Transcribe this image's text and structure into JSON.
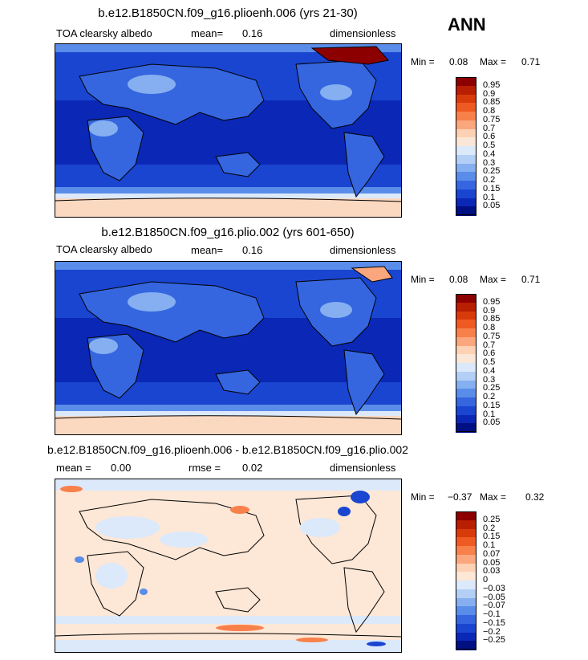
{
  "season": "ANN",
  "panels": [
    {
      "title": "b.e12.B1850CN.f09_g16.plioenh.006 (yrs 21-30)",
      "left_label": "TOA clearsky albedo",
      "mean_label": "mean=",
      "mean_value": "0.16",
      "units": "dimensionless",
      "min_label": "Min =",
      "min_value": "0.08",
      "max_label": "Max =",
      "max_value": "0.71",
      "levels": [
        "0.95",
        "0.9",
        "0.85",
        "0.8",
        "0.75",
        "0.7",
        "0.6",
        "0.5",
        "0.4",
        "0.3",
        "0.25",
        "0.2",
        "0.15",
        "0.1",
        "0.05"
      ],
      "colors": [
        "#8c0000",
        "#b81e00",
        "#d93a0a",
        "#ef5a22",
        "#f8804a",
        "#fba77d",
        "#fdd1b4",
        "#fbe7d8",
        "#dbe9fb",
        "#b4cff6",
        "#85aff0",
        "#5a8ce9",
        "#3566e0",
        "#1a45d0",
        "#0a28b5",
        "#000f82"
      ]
    },
    {
      "title": "b.e12.B1850CN.f09_g16.plio.002 (yrs 601-650)",
      "left_label": "TOA clearsky albedo",
      "mean_label": "mean=",
      "mean_value": "0.16",
      "units": "dimensionless",
      "min_label": "Min =",
      "min_value": "0.08",
      "max_label": "Max =",
      "max_value": "0.71",
      "levels": [
        "0.95",
        "0.9",
        "0.85",
        "0.8",
        "0.75",
        "0.7",
        "0.6",
        "0.5",
        "0.4",
        "0.3",
        "0.25",
        "0.2",
        "0.15",
        "0.1",
        "0.05"
      ],
      "colors": [
        "#8c0000",
        "#b81e00",
        "#d93a0a",
        "#ef5a22",
        "#f8804a",
        "#fba77d",
        "#fdd1b4",
        "#fbe7d8",
        "#dbe9fb",
        "#b4cff6",
        "#85aff0",
        "#5a8ce9",
        "#3566e0",
        "#1a45d0",
        "#0a28b5",
        "#000f82"
      ]
    },
    {
      "title": "b.e12.B1850CN.f09_g16.plioenh.006 - b.e12.B1850CN.f09_g16.plio.002",
      "mean_label": "mean =",
      "mean_value": "0.00",
      "rmse_label": "rmse =",
      "rmse_value": "0.02",
      "units": "dimensionless",
      "min_label": "Min =",
      "min_value": "−0.37",
      "max_label": "Max =",
      "max_value": "0.32",
      "levels": [
        "0.25",
        "0.2",
        "0.15",
        "0.1",
        "0.07",
        "0.05",
        "0.03",
        "0",
        "−0.03",
        "−0.05",
        "−0.07",
        "−0.1",
        "−0.15",
        "−0.2",
        "−0.25"
      ],
      "colors": [
        "#8c0000",
        "#b81e00",
        "#d93a0a",
        "#ef5a22",
        "#f8804a",
        "#fba77d",
        "#fdd1b4",
        "#fde7d6",
        "#dbe9fb",
        "#b4cff6",
        "#85aff0",
        "#5a8ce9",
        "#3566e0",
        "#1a45d0",
        "#0a28b5",
        "#000f82"
      ]
    }
  ]
}
